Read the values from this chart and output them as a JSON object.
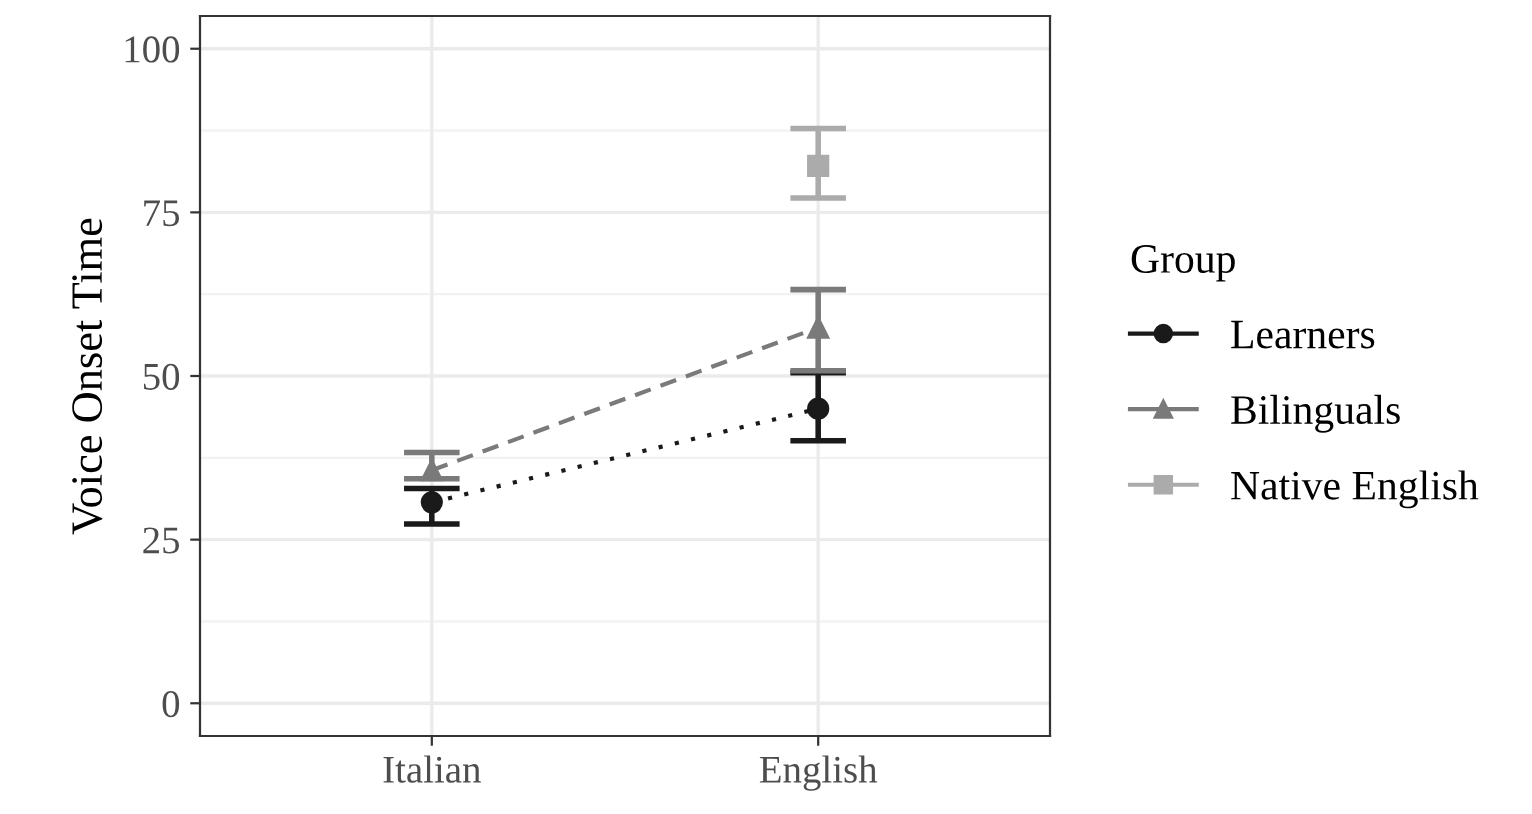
{
  "chart_data": {
    "type": "line",
    "ylabel": "Voice Onset Time",
    "legend_title": "Group",
    "categories": [
      "Italian",
      "English"
    ],
    "ylim": [
      -5,
      105
    ],
    "yticks": [
      0,
      25,
      50,
      75,
      100
    ],
    "grid": true,
    "legend": "right",
    "series": [
      {
        "name": "Learners",
        "color": "#1a1a1a",
        "marker": "circle",
        "line_style": "dotted",
        "values": [
          30.7,
          45.0
        ],
        "errors": [
          [
            27.4,
            32.8
          ],
          [
            40.1,
            50.5
          ]
        ]
      },
      {
        "name": "Bilinguals",
        "color": "#7a7a7a",
        "marker": "triangle",
        "line_style": "dashed",
        "values": [
          35.6,
          57.4
        ],
        "errors": [
          [
            34.3,
            38.3
          ],
          [
            50.8,
            63.2
          ]
        ]
      },
      {
        "name": "Native English",
        "color": "#ababab",
        "marker": "square",
        "line_style": "solid",
        "values": [
          null,
          82.1
        ],
        "errors": [
          null,
          [
            77.2,
            87.8
          ]
        ]
      }
    ]
  }
}
